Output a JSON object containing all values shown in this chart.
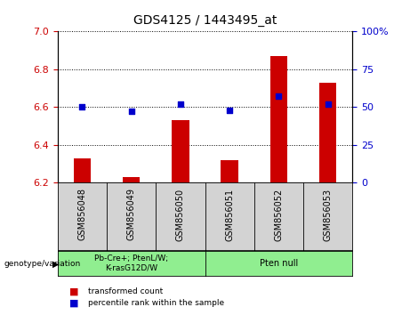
{
  "title": "GDS4125 / 1443495_at",
  "samples": [
    "GSM856048",
    "GSM856049",
    "GSM856050",
    "GSM856051",
    "GSM856052",
    "GSM856053"
  ],
  "transformed_count": [
    6.33,
    6.23,
    6.53,
    6.32,
    6.87,
    6.73
  ],
  "percentile_rank": [
    50,
    47,
    52,
    48,
    57,
    52
  ],
  "ylim_left": [
    6.2,
    7.0
  ],
  "ylim_right": [
    0,
    100
  ],
  "yticks_left": [
    6.2,
    6.4,
    6.6,
    6.8,
    7.0
  ],
  "yticks_right": [
    0,
    25,
    50,
    75,
    100
  ],
  "bar_color": "#cc0000",
  "dot_color": "#0000cc",
  "group1_label": "Pb-Cre+; PtenL/W;\nK-rasG12D/W",
  "group2_label": "Pten null",
  "group_bg_color": "#90ee90",
  "sample_bg_color": "#d3d3d3",
  "legend_red_label": "transformed count",
  "legend_blue_label": "percentile rank within the sample",
  "genotype_label": "genotype/variation",
  "bar_width": 0.35,
  "bar_bottom": 6.2
}
